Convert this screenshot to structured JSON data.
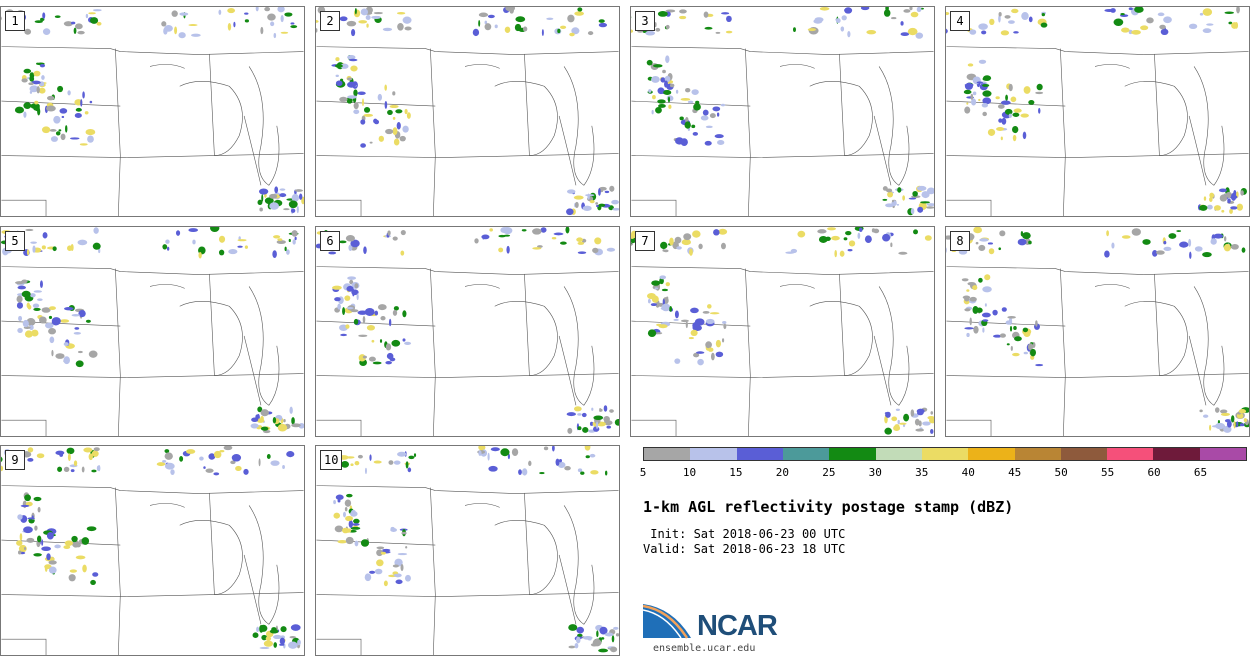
{
  "panels": [
    {
      "label": "1"
    },
    {
      "label": "2"
    },
    {
      "label": "3"
    },
    {
      "label": "4"
    },
    {
      "label": "5"
    },
    {
      "label": "6"
    },
    {
      "label": "7"
    },
    {
      "label": "8"
    },
    {
      "label": "9"
    },
    {
      "label": "10"
    }
  ],
  "colorbar": {
    "colors": [
      "#a6a6a6",
      "#b8c2ea",
      "#5a5ed6",
      "#4c9a9a",
      "#138a13",
      "#c2dcb8",
      "#ebdc64",
      "#ecb219",
      "#b98534",
      "#8e5a3c",
      "#f5507a",
      "#6e1a3a",
      "#a94aa7"
    ],
    "tick_labels": [
      "5",
      "10",
      "15",
      "20",
      "25",
      "30",
      "35",
      "40",
      "45",
      "50",
      "55",
      "60",
      "65"
    ]
  },
  "title": "1-km AGL reflectivity postage stamp (dBZ)",
  "init_line": " Init: Sat 2018-06-23 00 UTC",
  "valid_line": "Valid: Sat 2018-06-23 18 UTC",
  "logo": {
    "name": "NCAR",
    "url": "ensemble.ucar.edu"
  }
}
